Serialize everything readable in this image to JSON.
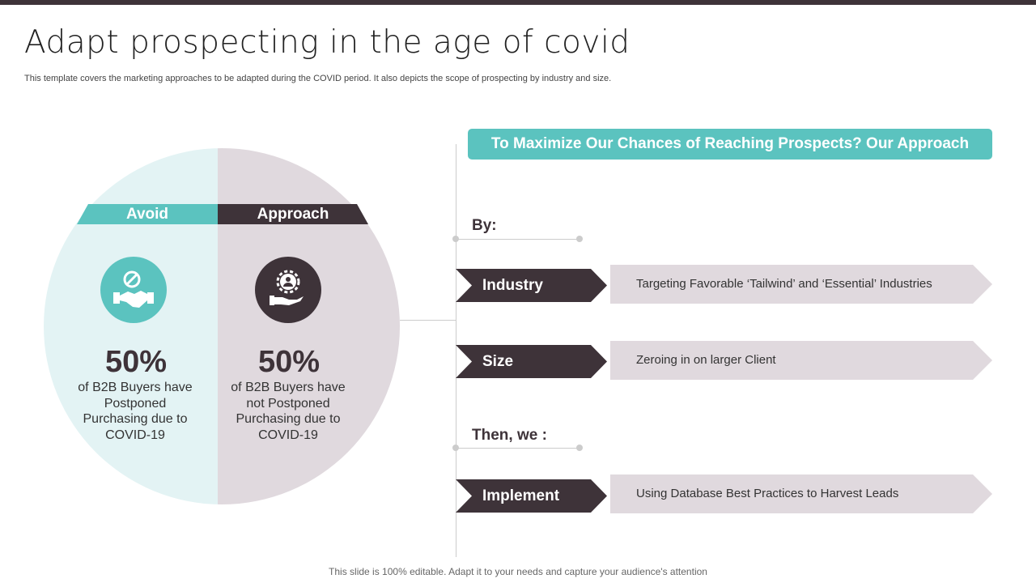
{
  "title": "Adapt prospecting in the age of covid",
  "subtitle": "This template covers the marketing approaches to be adapted during the COVID  period. It also depicts the scope of prospecting by industry and size.",
  "colors": {
    "teal": "#5bc3bf",
    "dark": "#3e3339",
    "light_teal": "#e3f3f4",
    "light_mauve": "#e0d9de"
  },
  "left": {
    "label": "Avoid",
    "icon": "handshake-prohibited-icon",
    "percent": "50%",
    "desc": "of B2B Buyers have Postponed Purchasing due to COVID-19"
  },
  "right": {
    "label": "Approach",
    "icon": "hand-gear-user-icon",
    "percent": "50%",
    "desc": "of B2B Buyers have not Postponed Purchasing due to COVID-19"
  },
  "header": "To Maximize Our Chances of Reaching Prospects? Our Approach",
  "by_label": "By:",
  "then_label": "Then, we :",
  "rows": [
    {
      "label": "Industry",
      "text": "Targeting Favorable ‘Tailwind’ and ‘Essential’ Industries"
    },
    {
      "label": "Size",
      "text": "Zeroing in on larger Client"
    },
    {
      "label": "Implement",
      "text": "Using Database Best Practices to Harvest Leads"
    }
  ],
  "footer": "This slide is 100% editable. Adapt it to your needs and capture your audience's attention"
}
